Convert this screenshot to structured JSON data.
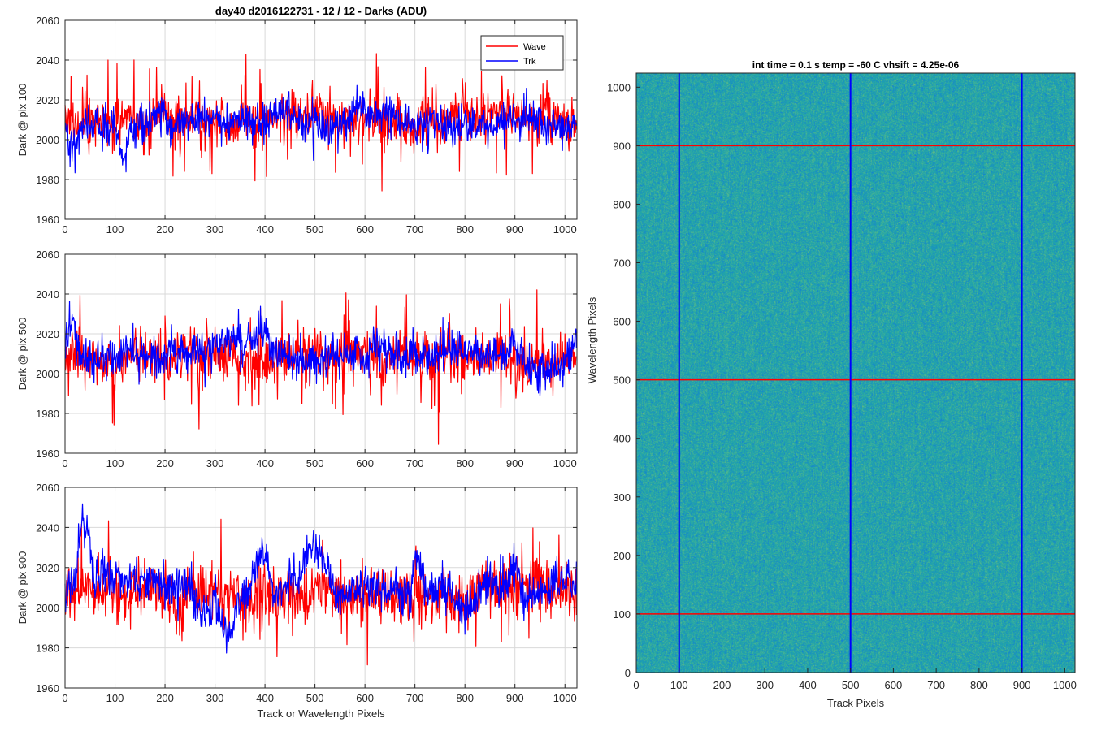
{
  "figure_title": "day40 d2016122731 - 12 / 12 - Darks (ADU)",
  "colors": {
    "wave": "#ff0000",
    "trk": "#0000ff",
    "grid": "#d9d9d9",
    "axis": "#262626"
  },
  "chart_data": [
    {
      "type": "line",
      "title": "day40 d2016122731 - 12 / 12 - Darks (ADU)",
      "xlabel": "",
      "ylabel": "Dark @ pix 100",
      "xlim": [
        0,
        1024
      ],
      "ylim": [
        1960,
        2060
      ],
      "xticks": [
        0,
        100,
        200,
        300,
        400,
        500,
        600,
        700,
        800,
        900,
        1000
      ],
      "yticks": [
        1960,
        1980,
        2000,
        2020,
        2040,
        2060
      ],
      "grid": true,
      "legend": {
        "placement": "top-right",
        "entries": [
          "Wave",
          "Trk"
        ]
      },
      "series": [
        {
          "name": "Wave",
          "color": "#ff0000",
          "mean": 2010,
          "noise": 6,
          "spike_rate": 0.06,
          "spike_amp": 28,
          "low_freq": [],
          "seed": 11
        },
        {
          "name": "Trk",
          "color": "#0000ff",
          "mean": 2009,
          "noise": 4.5,
          "spike_rate": 0.02,
          "spike_amp": 12,
          "low_freq": [
            [
              0,
              30,
              -12
            ],
            [
              100,
              130,
              -14
            ],
            [
              560,
              620,
              5
            ],
            [
              950,
              1000,
              -8
            ]
          ],
          "seed": 23
        }
      ]
    },
    {
      "type": "line",
      "title": "",
      "xlabel": "",
      "ylabel": "Dark @ pix 500",
      "xlim": [
        0,
        1024
      ],
      "ylim": [
        1960,
        2060
      ],
      "xticks": [
        0,
        100,
        200,
        300,
        400,
        500,
        600,
        700,
        800,
        900,
        1000
      ],
      "yticks": [
        1960,
        1980,
        2000,
        2020,
        2040,
        2060
      ],
      "grid": true,
      "series": [
        {
          "name": "Wave",
          "color": "#ff0000",
          "mean": 2008,
          "noise": 6,
          "spike_rate": 0.07,
          "spike_amp": 30,
          "low_freq": [],
          "seed": 37
        },
        {
          "name": "Trk",
          "color": "#0000ff",
          "mean": 2010,
          "noise": 5,
          "spike_rate": 0.02,
          "spike_amp": 12,
          "low_freq": [
            [
              0,
              25,
              14
            ],
            [
              380,
              420,
              10
            ],
            [
              900,
              1000,
              -5
            ]
          ],
          "seed": 41
        }
      ]
    },
    {
      "type": "line",
      "title": "",
      "xlabel": "Track or Wavelength Pixels",
      "ylabel": "Dark @ pix 900",
      "xlim": [
        0,
        1024
      ],
      "ylim": [
        1960,
        2060
      ],
      "xticks": [
        0,
        100,
        200,
        300,
        400,
        500,
        600,
        700,
        800,
        900,
        1000
      ],
      "yticks": [
        1960,
        1980,
        2000,
        2020,
        2040,
        2060
      ],
      "grid": true,
      "series": [
        {
          "name": "Wave",
          "color": "#ff0000",
          "mean": 2008,
          "noise": 7,
          "spike_rate": 0.06,
          "spike_amp": 28,
          "low_freq": [],
          "seed": 53
        },
        {
          "name": "Trk",
          "color": "#0000ff",
          "mean": 2010,
          "noise": 5,
          "spike_rate": 0.02,
          "spike_amp": 12,
          "low_freq": [
            [
              20,
              60,
              28
            ],
            [
              60,
              90,
              10
            ],
            [
              250,
              300,
              -12
            ],
            [
              300,
              350,
              -22
            ],
            [
              370,
              420,
              16
            ],
            [
              470,
              540,
              20
            ],
            [
              690,
              720,
              16
            ],
            [
              780,
              830,
              -6
            ],
            [
              880,
              920,
              8
            ]
          ],
          "seed": 67
        }
      ]
    },
    {
      "type": "heatmap",
      "title": "int time = 0.1 s   temp = -60 C   vhsift = 4.25e-06",
      "xlabel": "Track Pixels",
      "ylabel": "Wavelength Pixels",
      "xlim": [
        0,
        1024
      ],
      "ylim": [
        0,
        1024
      ],
      "xticks": [
        0,
        100,
        200,
        300,
        400,
        500,
        600,
        700,
        800,
        900,
        1000
      ],
      "yticks": [
        0,
        100,
        200,
        300,
        400,
        500,
        600,
        700,
        800,
        900,
        1000
      ],
      "colormap": "parula",
      "base_color": "#21a5a9",
      "vertical_lines": {
        "values": [
          100,
          500,
          900
        ],
        "color": "#0000ff"
      },
      "horizontal_lines": {
        "values": [
          100,
          500,
          900
        ],
        "color": "#ff0000"
      }
    }
  ]
}
